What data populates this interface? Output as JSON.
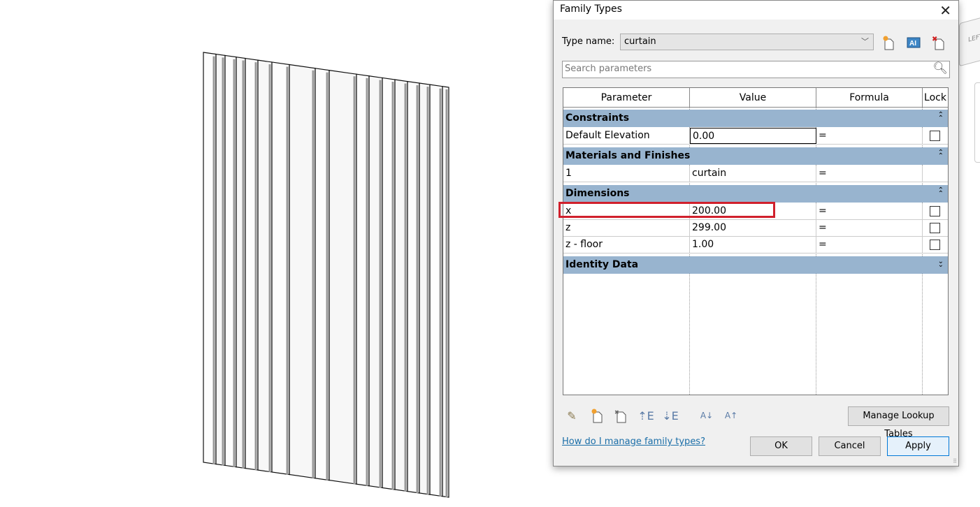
{
  "dialog": {
    "title": "Family Types",
    "type_name_label": "Type name:",
    "type_name_value": "curtain",
    "search_placeholder": "Search parameters",
    "columns": [
      "Parameter",
      "Value",
      "Formula",
      "Lock"
    ],
    "groups": [
      {
        "name": "Constraints",
        "expanded": true,
        "rows": [
          {
            "parameter": "Default Elevation",
            "value": "0.00",
            "formula": "=",
            "lock": true
          }
        ]
      },
      {
        "name": "Materials and Finishes",
        "expanded": true,
        "rows": [
          {
            "parameter": "1",
            "value": "curtain",
            "formula": "=",
            "lock": false
          }
        ]
      },
      {
        "name": "Dimensions",
        "expanded": true,
        "rows": [
          {
            "parameter": "x",
            "value": "200.00",
            "formula": "=",
            "lock": true
          },
          {
            "parameter": "z",
            "value": "299.00",
            "formula": "=",
            "lock": true
          },
          {
            "parameter": "z - floor",
            "value": "1.00",
            "formula": "=",
            "lock": true
          }
        ]
      },
      {
        "name": "Identity Data",
        "expanded": false,
        "rows": []
      }
    ],
    "manage_lookup_label": "Manage Lookup Tables",
    "help_link": "How do I manage family types?",
    "ok_label": "OK",
    "cancel_label": "Cancel",
    "apply_label": "Apply",
    "highlight_color": "#d0202c",
    "group_color": "#98b4cf"
  },
  "viewcube": {
    "face": "LEFT"
  }
}
